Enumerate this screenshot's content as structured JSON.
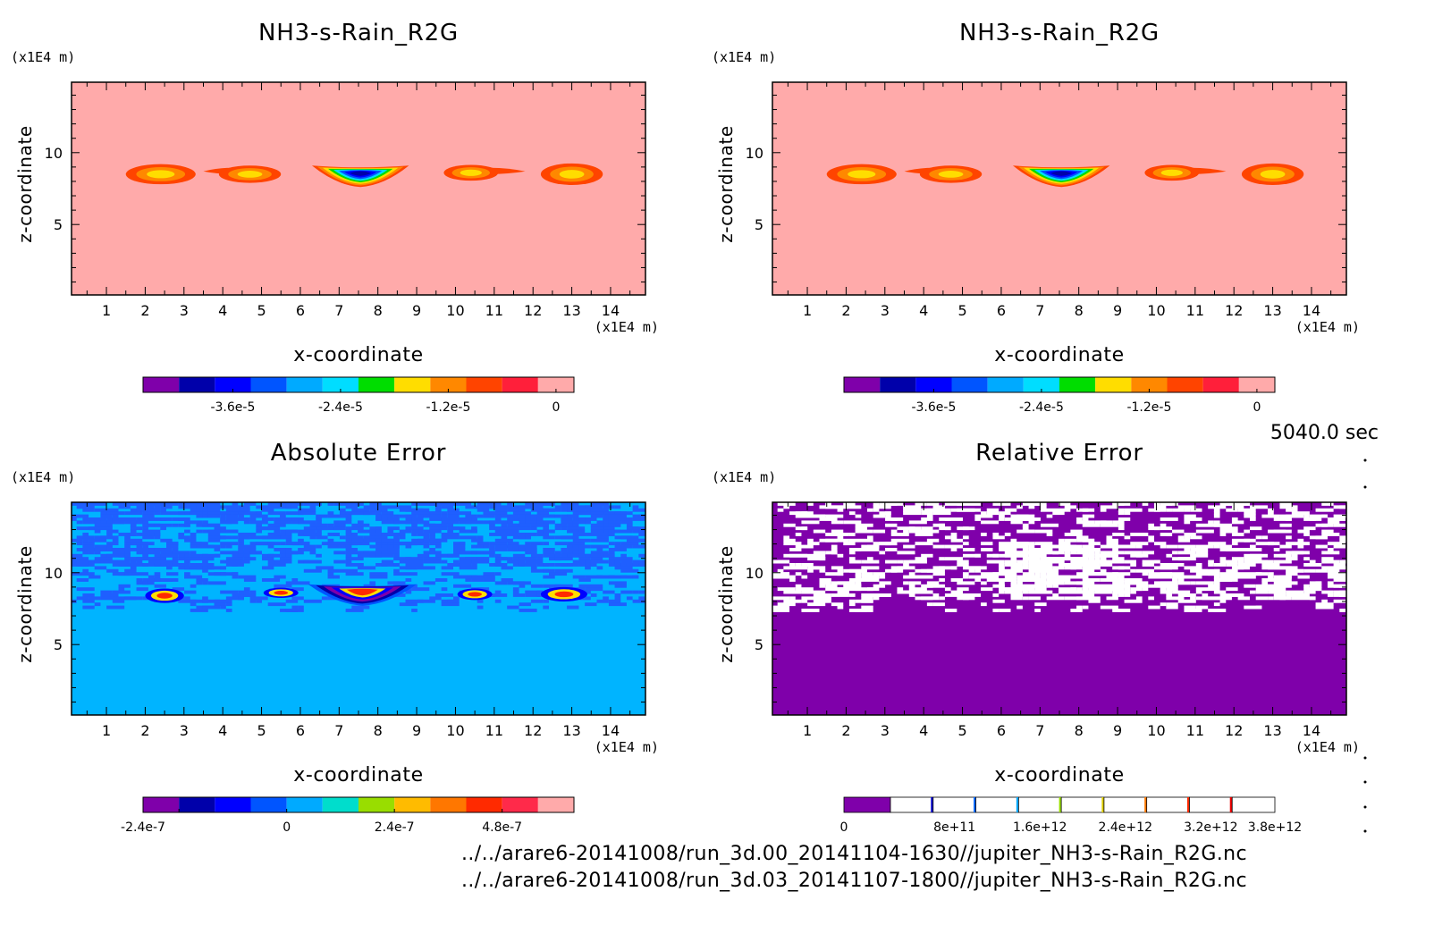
{
  "panels": [
    {
      "title": "NH3-s-Rain_R2G",
      "type": "filled-contour",
      "xlabel": "x-coordinate",
      "ylabel": "z-coordinate",
      "x_unit": "(x1E4 m)",
      "y_unit": "(x1E4 m)",
      "x_ticks": [
        "1",
        "2",
        "3",
        "4",
        "5",
        "6",
        "7",
        "8",
        "9",
        "10",
        "11",
        "12",
        "13",
        "14"
      ],
      "y_ticks": [
        "5",
        "10"
      ],
      "xlim": [
        0.1,
        14.9
      ],
      "ylim": [
        0.1,
        14.9
      ],
      "background_color": "#ffaaaa",
      "colorbar": {
        "colors": [
          "#7f00aa",
          "#0000aa",
          "#0000ff",
          "#0055ff",
          "#00aaff",
          "#00ddff",
          "#00dd00",
          "#ffdd00",
          "#ff8800",
          "#ff4400",
          "#ff1f3a",
          "#ffaaaa"
        ],
        "tick_labels": [
          "-3.6e-5",
          "-2.4e-5",
          "-1.2e-5",
          "0"
        ],
        "tick_positions": [
          1.5,
          4.5,
          7.5,
          10.5
        ]
      },
      "features": [
        {
          "kind": "blob",
          "x": 2.4,
          "z": 8.5,
          "w": 0.9,
          "h": 0.7
        },
        {
          "kind": "streak",
          "x1": 3.5,
          "x2": 5.0,
          "z": 8.7
        },
        {
          "kind": "blob",
          "x": 4.7,
          "z": 8.5,
          "w": 0.8,
          "h": 0.6
        },
        {
          "kind": "central",
          "x1": 6.3,
          "x2": 8.8,
          "z": 8.6
        },
        {
          "kind": "streak",
          "x1": 10.0,
          "x2": 11.8,
          "z": 8.7
        },
        {
          "kind": "blob",
          "x": 10.4,
          "z": 8.6,
          "w": 0.7,
          "h": 0.55
        },
        {
          "kind": "blob",
          "x": 13.0,
          "z": 8.5,
          "w": 0.8,
          "h": 0.75
        }
      ]
    },
    {
      "title": "NH3-s-Rain_R2G",
      "type": "filled-contour",
      "xlabel": "x-coordinate",
      "ylabel": "z-coordinate",
      "x_unit": "(x1E4 m)",
      "y_unit": "(x1E4 m)",
      "x_ticks": [
        "1",
        "2",
        "3",
        "4",
        "5",
        "6",
        "7",
        "8",
        "9",
        "10",
        "11",
        "12",
        "13",
        "14"
      ],
      "y_ticks": [
        "5",
        "10"
      ],
      "xlim": [
        0.1,
        14.9
      ],
      "ylim": [
        0.1,
        14.9
      ],
      "background_color": "#ffaaaa",
      "colorbar": {
        "colors": [
          "#7f00aa",
          "#0000aa",
          "#0000ff",
          "#0055ff",
          "#00aaff",
          "#00ddff",
          "#00dd00",
          "#ffdd00",
          "#ff8800",
          "#ff4400",
          "#ff1f3a",
          "#ffaaaa"
        ],
        "tick_labels": [
          "-3.6e-5",
          "-2.4e-5",
          "-1.2e-5",
          "0"
        ],
        "tick_positions": [
          1.5,
          4.5,
          7.5,
          10.5
        ]
      },
      "features": [
        {
          "kind": "blob",
          "x": 2.4,
          "z": 8.5,
          "w": 0.9,
          "h": 0.7
        },
        {
          "kind": "streak",
          "x1": 3.5,
          "x2": 5.0,
          "z": 8.7
        },
        {
          "kind": "blob",
          "x": 4.7,
          "z": 8.5,
          "w": 0.8,
          "h": 0.6
        },
        {
          "kind": "central",
          "x1": 6.3,
          "x2": 8.8,
          "z": 8.6
        },
        {
          "kind": "streak",
          "x1": 10.0,
          "x2": 11.8,
          "z": 8.7
        },
        {
          "kind": "blob",
          "x": 10.4,
          "z": 8.6,
          "w": 0.7,
          "h": 0.55
        },
        {
          "kind": "blob",
          "x": 13.0,
          "z": 8.5,
          "w": 0.8,
          "h": 0.75
        }
      ]
    },
    {
      "title": "Absolute Error",
      "type": "filled-contour",
      "xlabel": "x-coordinate",
      "ylabel": "z-coordinate",
      "x_unit": "(x1E4 m)",
      "y_unit": "(x1E4 m)",
      "x_ticks": [
        "1",
        "2",
        "3",
        "4",
        "5",
        "6",
        "7",
        "8",
        "9",
        "10",
        "11",
        "12",
        "13",
        "14"
      ],
      "y_ticks": [
        "5",
        "10"
      ],
      "xlim": [
        0.1,
        14.9
      ],
      "ylim": [
        0.1,
        14.9
      ],
      "background_color": "#00b4ff",
      "noise_color": "#1f5fff",
      "colorbar": {
        "colors": [
          "#7f00aa",
          "#0000aa",
          "#0000ff",
          "#0055ff",
          "#00aaff",
          "#00ddcc",
          "#99dd00",
          "#ffbb00",
          "#ff7700",
          "#ff2a00",
          "#ff2a4a",
          "#ffaaaa"
        ],
        "tick_labels": [
          "-2.4e-7",
          "0",
          "2.4e-7",
          "4.8e-7"
        ],
        "tick_positions": [
          0,
          3,
          6,
          9
        ]
      },
      "features": [
        {
          "kind": "blob",
          "x": 2.5,
          "z": 8.4,
          "w": 0.5,
          "h": 0.5
        },
        {
          "kind": "blob",
          "x": 5.5,
          "z": 8.6,
          "w": 0.45,
          "h": 0.35
        },
        {
          "kind": "central",
          "x1": 6.2,
          "x2": 9.0,
          "z": 8.7
        },
        {
          "kind": "blob",
          "x": 10.5,
          "z": 8.5,
          "w": 0.45,
          "h": 0.4
        },
        {
          "kind": "blob",
          "x": 12.8,
          "z": 8.5,
          "w": 0.6,
          "h": 0.5
        }
      ]
    },
    {
      "title": "Relative Error",
      "type": "filled-contour",
      "xlabel": "x-coordinate",
      "ylabel": "z-coordinate",
      "x_unit": "(x1E4 m)",
      "y_unit": "(x1E4 m)",
      "x_ticks": [
        "1",
        "2",
        "3",
        "4",
        "5",
        "6",
        "7",
        "8",
        "9",
        "10",
        "11",
        "12",
        "13",
        "14"
      ],
      "y_ticks": [
        "5",
        "10"
      ],
      "xlim": [
        0.1,
        14.9
      ],
      "ylim": [
        0.1,
        14.9
      ],
      "background_color": "#7f00aa",
      "noise_color": "#ffffff",
      "colorbar": {
        "colors": [
          "#7f00aa",
          "#ffffff",
          "#ffffff",
          "#ffffff",
          "#ffffff",
          "#ffffff",
          "#ffffff",
          "#ffffff",
          "#ffffff",
          "#ffffff"
        ],
        "line_colors": [
          "#0000cc",
          "#0066ff",
          "#00aaff",
          "#99dd00",
          "#ddcc00",
          "#ff7700",
          "#ff2a00",
          "#ee0000"
        ],
        "tick_labels": [
          "0",
          "8e+11",
          "1.6e+12",
          "2.4e+12",
          "3.2e+12",
          "3.8e+12"
        ],
        "tick_positions": [
          0,
          2,
          4,
          6,
          8,
          9.5
        ]
      },
      "features": []
    }
  ],
  "time_label": "5040.0 sec",
  "footer": {
    "file_a": "../../arare6-20141008/run_3d.00_20141104-1630//jupiter_NH3-s-Rain_R2G.nc",
    "file_b": "../../arare6-20141008/run_3d.03_20141107-1800//jupiter_NH3-s-Rain_R2G.nc"
  }
}
